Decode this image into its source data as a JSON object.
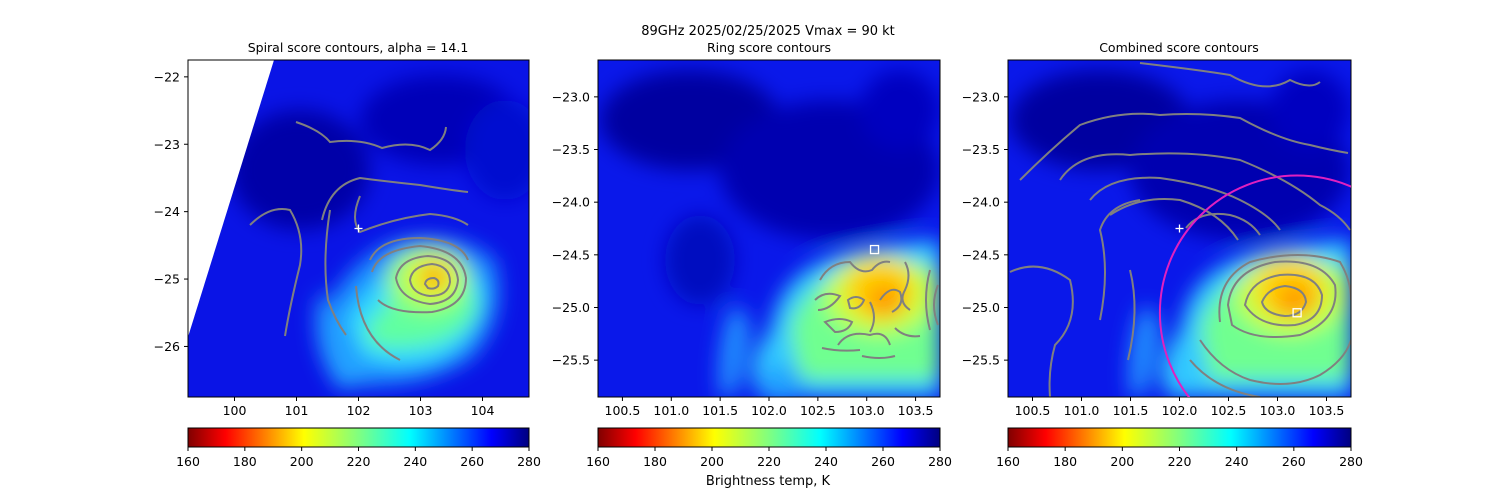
{
  "suptitle": "89GHz  2025/02/25/2025    Vmax = 90 kt",
  "colorbar_label": "Brightness temp, K",
  "colormap": [
    "#800000",
    "#ff0000",
    "#ff8000",
    "#ffff00",
    "#80ff80",
    "#00ffff",
    "#0080ff",
    "#0000ff",
    "#000080"
  ],
  "contour_color": "#808080",
  "chart_data": [
    {
      "type": "heatmap",
      "title": "Spiral score contours, alpha = 14.1",
      "xlim": [
        99.25,
        104.75
      ],
      "ylim": [
        -26.75,
        -21.75
      ],
      "xticks": [
        {
          "value": 100,
          "label": "100"
        },
        {
          "value": 101,
          "label": "101"
        },
        {
          "value": 102,
          "label": "102"
        },
        {
          "value": 103,
          "label": "103"
        },
        {
          "value": 104,
          "label": "104"
        }
      ],
      "yticks": [
        {
          "value": -22,
          "label": "−22"
        },
        {
          "value": -23,
          "label": "−23"
        },
        {
          "value": -24,
          "label": "−24"
        },
        {
          "value": -25,
          "label": "−25"
        },
        {
          "value": -26,
          "label": "−26"
        }
      ],
      "center_marker": {
        "shape": "plus",
        "x": 102.0,
        "y": -24.25,
        "color": "#ffffff"
      },
      "colorbar": {
        "min": 160,
        "max": 280,
        "ticks": [
          {
            "value": 160,
            "label": "160"
          },
          {
            "value": 180,
            "label": "180"
          },
          {
            "value": 200,
            "label": "200"
          },
          {
            "value": 220,
            "label": "220"
          },
          {
            "value": 240,
            "label": "240"
          },
          {
            "value": 260,
            "label": "260"
          },
          {
            "value": 280,
            "label": "280"
          }
        ]
      }
    },
    {
      "type": "heatmap",
      "title": "Ring score contours",
      "xlim": [
        100.25,
        103.75
      ],
      "ylim": [
        -25.85,
        -22.65
      ],
      "xticks": [
        {
          "value": 100.5,
          "label": "100.5"
        },
        {
          "value": 101.0,
          "label": "101.0"
        },
        {
          "value": 101.5,
          "label": "101.5"
        },
        {
          "value": 102.0,
          "label": "102.0"
        },
        {
          "value": 102.5,
          "label": "102.5"
        },
        {
          "value": 103.0,
          "label": "103.0"
        },
        {
          "value": 103.5,
          "label": "103.5"
        }
      ],
      "yticks": [
        {
          "value": -23.0,
          "label": "−23.0"
        },
        {
          "value": -23.5,
          "label": "−23.5"
        },
        {
          "value": -24.0,
          "label": "−24.0"
        },
        {
          "value": -24.5,
          "label": "−24.5"
        },
        {
          "value": -25.0,
          "label": "−25.0"
        },
        {
          "value": -25.5,
          "label": "−25.5"
        }
      ],
      "square_marker": {
        "shape": "square",
        "x": 103.08,
        "y": -24.45,
        "color": "#ffffff"
      },
      "colorbar": {
        "min": 160,
        "max": 280,
        "ticks": [
          {
            "value": 160,
            "label": "160"
          },
          {
            "value": 180,
            "label": "180"
          },
          {
            "value": 200,
            "label": "200"
          },
          {
            "value": 220,
            "label": "220"
          },
          {
            "value": 240,
            "label": "240"
          },
          {
            "value": 260,
            "label": "260"
          },
          {
            "value": 280,
            "label": "280"
          }
        ]
      }
    },
    {
      "type": "heatmap",
      "title": "Combined score contours",
      "xlim": [
        100.25,
        103.75
      ],
      "ylim": [
        -25.85,
        -22.65
      ],
      "xticks": [
        {
          "value": 100.5,
          "label": "100.5"
        },
        {
          "value": 101.0,
          "label": "101.0"
        },
        {
          "value": 101.5,
          "label": "101.5"
        },
        {
          "value": 102.0,
          "label": "102.0"
        },
        {
          "value": 102.5,
          "label": "102.5"
        },
        {
          "value": 103.0,
          "label": "103.0"
        },
        {
          "value": 103.5,
          "label": "103.5"
        }
      ],
      "yticks": [
        {
          "value": -23.0,
          "label": "−23.0"
        },
        {
          "value": -23.5,
          "label": "−23.5"
        },
        {
          "value": -24.0,
          "label": "−24.0"
        },
        {
          "value": -24.5,
          "label": "−24.5"
        },
        {
          "value": -25.0,
          "label": "−25.0"
        },
        {
          "value": -25.5,
          "label": "−25.5"
        }
      ],
      "center_marker": {
        "shape": "plus",
        "x": 102.0,
        "y": -24.25,
        "color": "#ffffff"
      },
      "square_marker": {
        "shape": "square",
        "x": 103.2,
        "y": -25.05,
        "color": "#ffffff"
      },
      "circle": {
        "cx": 103.2,
        "cy": -25.05,
        "radius_lon": 1.4,
        "color": "#e020c0"
      },
      "colorbar": {
        "min": 160,
        "max": 280,
        "ticks": [
          {
            "value": 160,
            "label": "160"
          },
          {
            "value": 180,
            "label": "180"
          },
          {
            "value": 200,
            "label": "200"
          },
          {
            "value": 220,
            "label": "220"
          },
          {
            "value": 240,
            "label": "240"
          },
          {
            "value": 260,
            "label": "260"
          },
          {
            "value": 280,
            "label": "280"
          }
        ]
      }
    }
  ]
}
